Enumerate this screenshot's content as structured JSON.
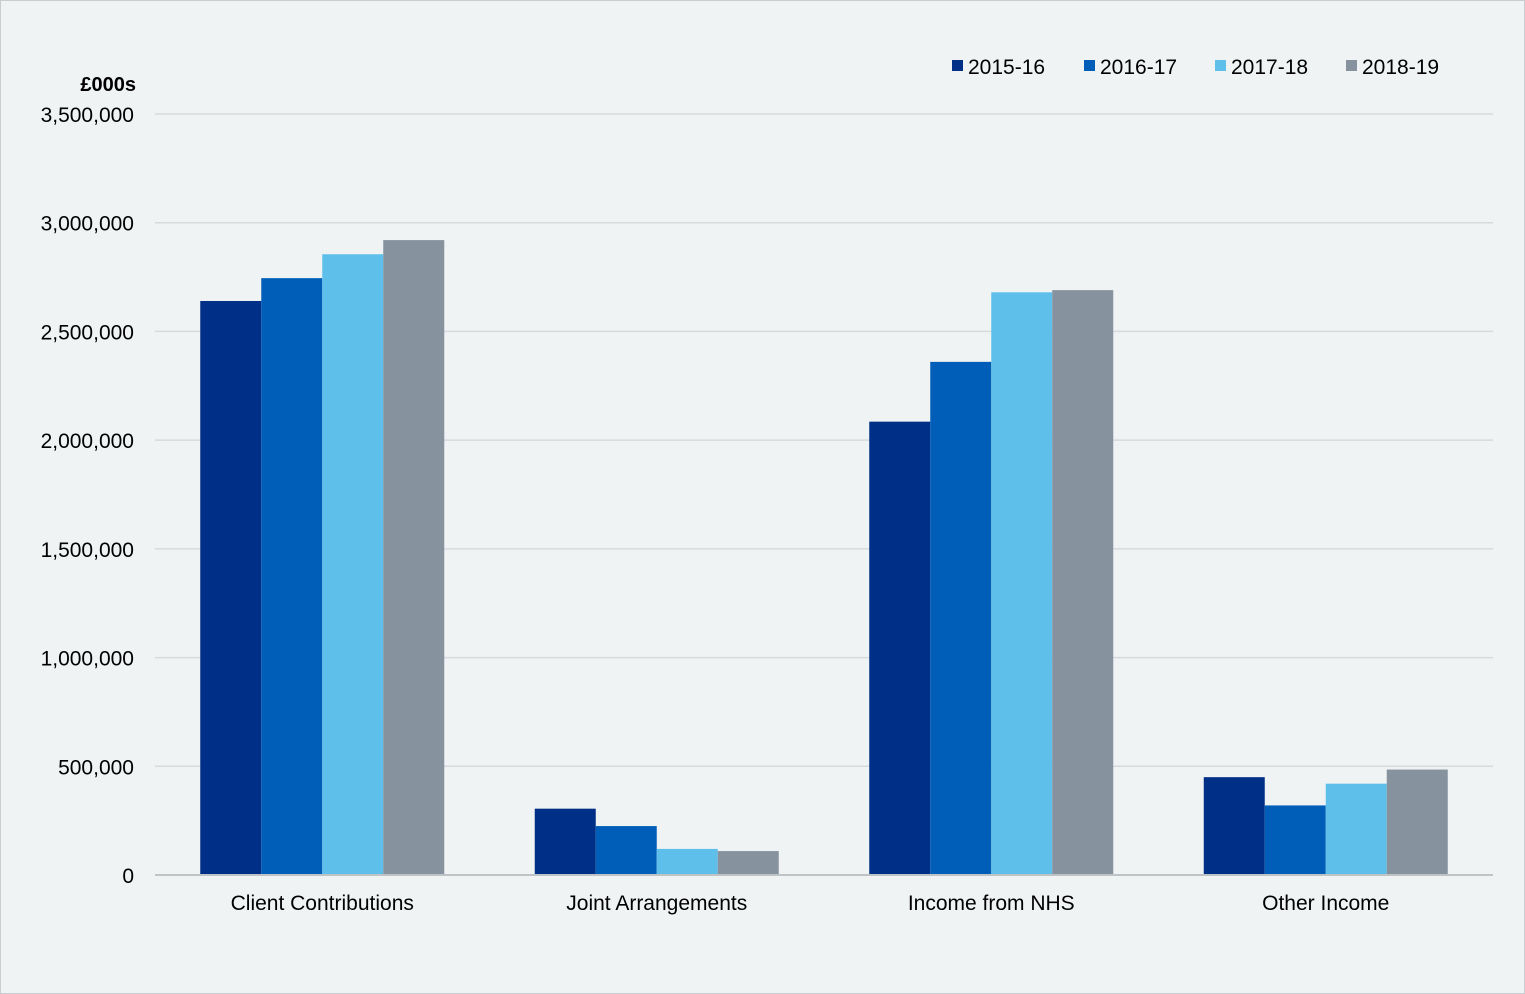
{
  "chart_data": {
    "type": "bar",
    "title": "",
    "unit_label": "£000s",
    "xlabel": "",
    "ylabel": "",
    "categories": [
      "Client Contributions",
      "Joint Arrangements",
      "Income from NHS",
      "Other Income"
    ],
    "series": [
      {
        "name": "2015-16",
        "color": "#002f87",
        "values": [
          2640000,
          305000,
          2085000,
          450000
        ]
      },
      {
        "name": "2016-17",
        "color": "#005eb8",
        "values": [
          2745000,
          225000,
          2360000,
          320000
        ]
      },
      {
        "name": "2017-18",
        "color": "#5ec0ea",
        "values": [
          2855000,
          120000,
          2680000,
          420000
        ]
      },
      {
        "name": "2018-19",
        "color": "#86929d",
        "values": [
          2920000,
          110000,
          2690000,
          485000
        ]
      }
    ],
    "ylim": [
      0,
      3500000
    ],
    "yticks": [
      0,
      500000,
      1000000,
      1500000,
      2000000,
      2500000,
      3000000,
      3500000
    ],
    "ytick_labels": [
      "0",
      "500,000",
      "1,000,000",
      "1,500,000",
      "2,000,000",
      "2,500,000",
      "3,000,000",
      "3,500,000"
    ],
    "grid": true,
    "legend_position": "top-right"
  }
}
